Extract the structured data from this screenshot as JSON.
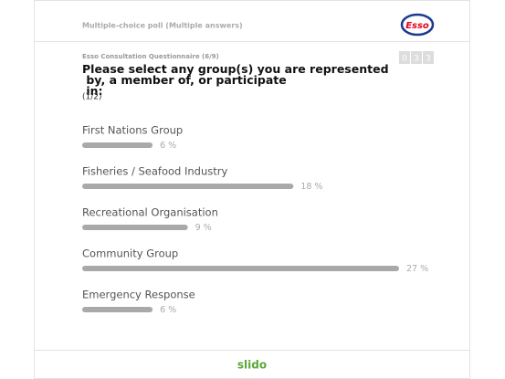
{
  "header": {
    "poll_type": "Multiple-choice poll (Multiple answers)",
    "logo": "Esso"
  },
  "question": {
    "kicker": "Esso Consultation Questionnaire (6/9)",
    "text": "Please select any group(s) you are represented by, a member of, or participate in:",
    "page": "(1/2)",
    "counter": [
      "0",
      "3",
      "3"
    ]
  },
  "chart_data": {
    "type": "bar",
    "categories": [
      "First Nations Group",
      "Fisheries / Seafood Industry",
      "Recreational Organisation",
      "Community Group",
      "Emergency Response"
    ],
    "values": [
      6,
      18,
      9,
      27,
      6
    ],
    "value_labels": [
      "6 %",
      "18 %",
      "9 %",
      "27 %",
      "6 %"
    ],
    "color": "#a9a9a9"
  },
  "footer": {
    "brand": "slido"
  }
}
